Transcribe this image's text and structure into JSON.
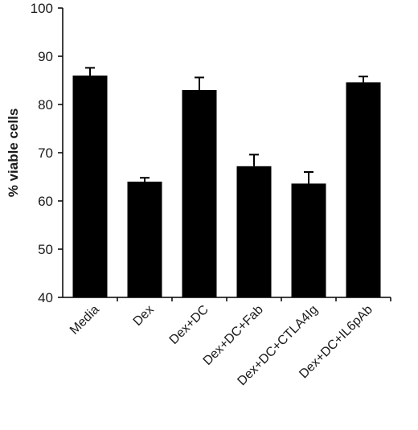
{
  "chart_data": {
    "type": "bar",
    "title": "",
    "xlabel": "",
    "ylabel": "% viable cells",
    "ylim": [
      40,
      100
    ],
    "yticks": [
      40,
      50,
      60,
      70,
      80,
      90,
      100
    ],
    "grid": false,
    "legend": "none",
    "categories": [
      "Media",
      "Dex",
      "Dex+DC",
      "Dex+DC+Fab",
      "Dex+DC+CTLA4Ig",
      "Dex+DC+IL6pAb"
    ],
    "values": [
      86,
      64,
      83,
      67.2,
      63.6,
      84.6
    ],
    "errors": [
      1.6,
      0.8,
      2.6,
      2.4,
      2.4,
      1.2
    ],
    "bar_color": "#000000"
  }
}
